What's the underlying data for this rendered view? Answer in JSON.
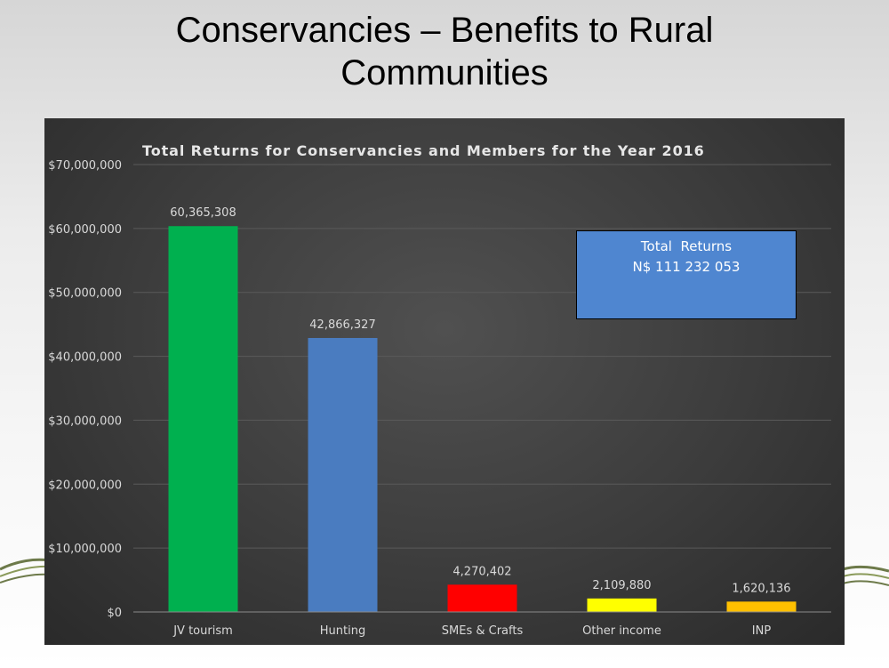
{
  "slide": {
    "title_line1": "Conservancies – Benefits to Rural",
    "title_line2": "Communities"
  },
  "annotation": {
    "line1": "Total  Returns",
    "line2": "N$ 111 232 053"
  },
  "colors": {
    "panel": "#3c3c3c",
    "gridline": "#5a5a5a",
    "text": "#d9d9d9",
    "title": "#e6e6e6",
    "annotation_fill": "#4f86d0"
  },
  "chart_data": {
    "type": "bar",
    "title": "Total Returns for Conservancies and Members for the Year 2016",
    "xlabel": "",
    "ylabel": "",
    "ylim": [
      0,
      70000000
    ],
    "yticks": [
      0,
      10000000,
      20000000,
      30000000,
      40000000,
      50000000,
      60000000,
      70000000
    ],
    "ytick_labels": [
      "$0",
      "$10,000,000",
      "$20,000,000",
      "$30,000,000",
      "$40,000,000",
      "$50,000,000",
      "$60,000,000",
      "$70,000,000"
    ],
    "grid": true,
    "legend": "none",
    "categories": [
      "JV tourism",
      "Hunting",
      "SMEs & Crafts",
      "Other income",
      "INP"
    ],
    "values": [
      60365308,
      42866327,
      4270402,
      2109880,
      1620136
    ],
    "data_labels": [
      "60,365,308",
      "42,866,327",
      "4,270,402",
      "2,109,880",
      "1,620,136"
    ],
    "bar_colors": [
      "#00b04f",
      "#4a7cc0",
      "#ff0000",
      "#ffff00",
      "#ffc000"
    ]
  }
}
